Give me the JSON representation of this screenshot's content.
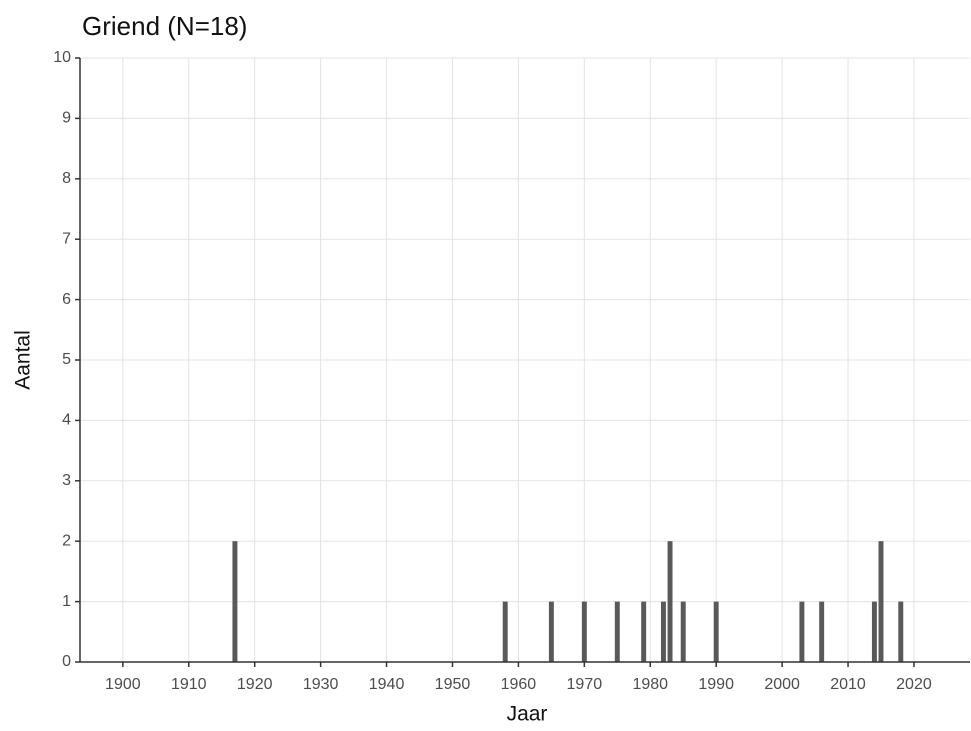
{
  "chart_data": {
    "type": "bar",
    "title": "Griend (N=18)",
    "x_label": "Jaar",
    "y_label": "Aantal",
    "x": [
      1917,
      1958,
      1965,
      1970,
      1975,
      1979,
      1982,
      1983,
      1985,
      1990,
      2003,
      2006,
      2014,
      2015,
      2018
    ],
    "values": [
      2,
      1,
      1,
      1,
      1,
      1,
      1,
      2,
      1,
      1,
      1,
      1,
      1,
      2,
      1
    ],
    "color": "#595959",
    "xlim": [
      1893.5,
      2028.5
    ],
    "xticks": [
      1900,
      1910,
      1920,
      1930,
      1940,
      1950,
      1960,
      1970,
      1980,
      1990,
      2000,
      2010,
      2020
    ],
    "ylim": [
      0,
      10
    ],
    "yticks": [
      0,
      1,
      2,
      3,
      4,
      5,
      6,
      7,
      8,
      9,
      10
    ],
    "grid": true
  }
}
